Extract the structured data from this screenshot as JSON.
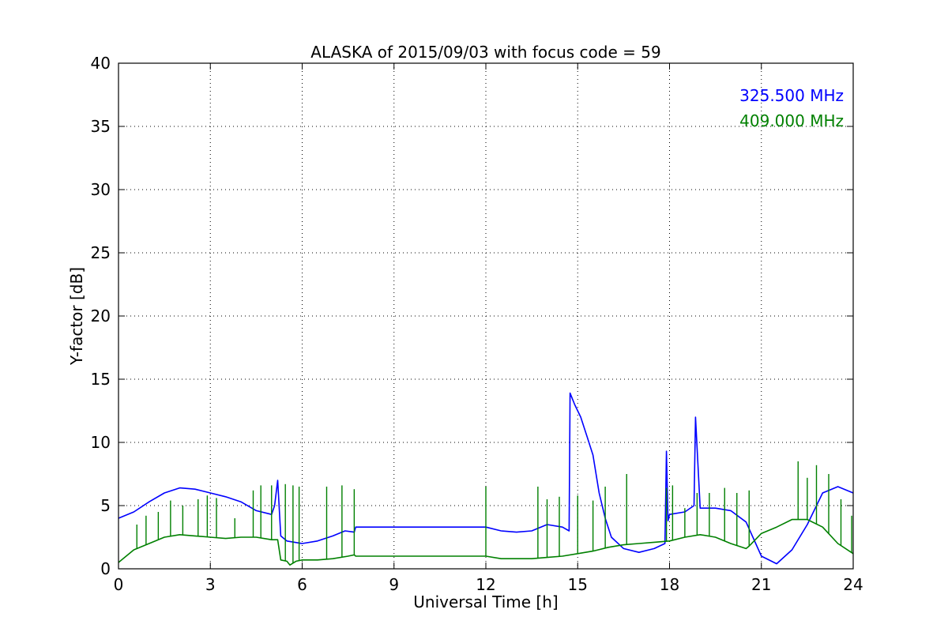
{
  "chart_data": {
    "type": "line",
    "title": "ALASKA of 2015/09/03 with focus code = 59",
    "xlabel": "Universal Time [h]",
    "ylabel": "Y-factor [dB]",
    "xlim": [
      0,
      24
    ],
    "ylim": [
      0,
      40
    ],
    "xticks": [
      0,
      3,
      6,
      9,
      12,
      15,
      18,
      21,
      24
    ],
    "yticks": [
      0,
      5,
      10,
      15,
      20,
      25,
      30,
      35,
      40
    ],
    "grid": true,
    "legend_placement": "top-right",
    "series": [
      {
        "name": "325.500 MHz",
        "color": "#0000ff",
        "x": [
          0,
          0.5,
          1,
          1.5,
          2,
          2.5,
          3,
          3.5,
          4,
          4.5,
          5,
          5.1,
          5.2,
          5.3,
          5.5,
          6,
          6.5,
          7,
          7.4,
          7.7,
          7.75,
          12,
          12.5,
          13,
          13.5,
          14,
          14.5,
          14.72,
          14.75,
          14.9,
          15.1,
          15.3,
          15.5,
          15.7,
          15.9,
          16.1,
          16.5,
          17,
          17.5,
          17.85,
          17.9,
          17.95,
          18,
          18.5,
          18.8,
          18.85,
          19,
          19.5,
          20,
          20.5,
          21,
          21.5,
          22,
          22.5,
          23,
          23.5,
          24
        ],
        "y": [
          4.0,
          4.5,
          5.3,
          6.0,
          6.4,
          6.3,
          6.0,
          5.7,
          5.3,
          4.6,
          4.3,
          5.0,
          7.0,
          2.6,
          2.2,
          2.0,
          2.2,
          2.6,
          3.0,
          2.9,
          3.3,
          3.3,
          3.0,
          2.9,
          3.0,
          3.5,
          3.3,
          3.0,
          13.9,
          13.0,
          12.0,
          10.5,
          9.0,
          6.0,
          4.0,
          2.5,
          1.6,
          1.3,
          1.6,
          2.0,
          9.3,
          3.8,
          4.3,
          4.5,
          5.0,
          12.0,
          4.8,
          4.8,
          4.6,
          3.7,
          1.0,
          0.4,
          1.5,
          3.5,
          6.0,
          6.5,
          6.0
        ]
      },
      {
        "name": "409.000 MHz",
        "color": "#008000",
        "x": [
          0,
          0.1,
          0.5,
          1,
          1.5,
          2,
          2.5,
          3,
          3.5,
          4,
          4.5,
          5,
          5.2,
          5.3,
          5.5,
          5.6,
          5.8,
          6,
          6.5,
          7,
          7.5,
          7.7,
          7.75,
          12,
          12.5,
          13,
          13.5,
          14,
          14.5,
          15,
          15.5,
          16,
          16.5,
          17,
          17.5,
          18,
          18.5,
          19,
          19.5,
          20,
          20.5,
          20.6,
          21,
          21.5,
          22,
          22.5,
          23,
          23.5,
          24
        ],
        "y": [
          0.5,
          0.7,
          1.5,
          2.0,
          2.5,
          2.7,
          2.6,
          2.5,
          2.4,
          2.5,
          2.5,
          2.3,
          2.3,
          0.7,
          0.6,
          0.3,
          0.6,
          0.7,
          0.7,
          0.8,
          1.0,
          1.1,
          1.0,
          1.0,
          0.8,
          0.8,
          0.8,
          0.9,
          1.0,
          1.2,
          1.4,
          1.7,
          1.9,
          2.0,
          2.1,
          2.2,
          2.5,
          2.7,
          2.5,
          2.0,
          1.6,
          1.8,
          2.8,
          3.3,
          3.9,
          3.9,
          3.3,
          2.0,
          1.2
        ],
        "spikes": [
          {
            "x": 0.6,
            "y": 3.5
          },
          {
            "x": 0.9,
            "y": 4.2
          },
          {
            "x": 1.3,
            "y": 4.5
          },
          {
            "x": 1.7,
            "y": 5.4
          },
          {
            "x": 2.1,
            "y": 5.0
          },
          {
            "x": 2.6,
            "y": 5.5
          },
          {
            "x": 2.9,
            "y": 5.8
          },
          {
            "x": 3.2,
            "y": 5.6
          },
          {
            "x": 3.8,
            "y": 4.0
          },
          {
            "x": 4.4,
            "y": 6.2
          },
          {
            "x": 4.65,
            "y": 6.6
          },
          {
            "x": 5.0,
            "y": 6.6
          },
          {
            "x": 5.45,
            "y": 6.7
          },
          {
            "x": 5.7,
            "y": 6.6
          },
          {
            "x": 5.9,
            "y": 6.5
          },
          {
            "x": 6.8,
            "y": 6.5
          },
          {
            "x": 7.3,
            "y": 6.6
          },
          {
            "x": 7.7,
            "y": 6.3
          },
          {
            "x": 12.0,
            "y": 6.5
          },
          {
            "x": 13.7,
            "y": 6.5
          },
          {
            "x": 14.0,
            "y": 5.5
          },
          {
            "x": 14.4,
            "y": 5.7
          },
          {
            "x": 15.0,
            "y": 5.8
          },
          {
            "x": 15.5,
            "y": 5.4
          },
          {
            "x": 15.9,
            "y": 6.5
          },
          {
            "x": 16.6,
            "y": 7.5
          },
          {
            "x": 17.9,
            "y": 6.4
          },
          {
            "x": 18.1,
            "y": 6.6
          },
          {
            "x": 18.5,
            "y": 4.8
          },
          {
            "x": 18.9,
            "y": 6.0
          },
          {
            "x": 19.3,
            "y": 6.0
          },
          {
            "x": 19.8,
            "y": 6.4
          },
          {
            "x": 20.2,
            "y": 6.0
          },
          {
            "x": 20.6,
            "y": 6.2
          },
          {
            "x": 22.2,
            "y": 8.5
          },
          {
            "x": 22.5,
            "y": 7.2
          },
          {
            "x": 22.8,
            "y": 8.2
          },
          {
            "x": 23.2,
            "y": 7.5
          },
          {
            "x": 23.6,
            "y": 5.5
          },
          {
            "x": 23.95,
            "y": 4.2
          }
        ]
      }
    ]
  }
}
